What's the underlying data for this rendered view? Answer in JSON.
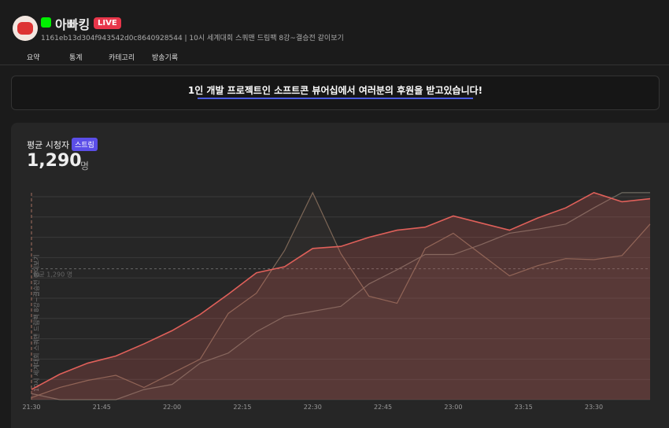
{
  "header": {
    "name": "아빠킹",
    "badge": "LIVE",
    "subtitle": "1161eb13d304f943542d0c8640928544 | 10시 세계대회 스쿼맨 드림팩 8강~결승전 같이보기"
  },
  "tabs": [
    "요약",
    "통계",
    "카테고리",
    "방송기록"
  ],
  "banner": {
    "text": "1인 개발 프로젝트인 소프트콘 뷰어십에서 여러분의 후원을 받고있습니다!"
  },
  "chart_data": {
    "type": "line",
    "title": "평균 시청자",
    "badge": "스트림",
    "stat": "1,290",
    "unit": "명",
    "reference": {
      "value": 1290,
      "label": "평균 1,290 명"
    },
    "annotation": "10시 세계대회 스쿼맨 드림팩 8강~결승전 같이보기",
    "x": [
      0,
      6,
      12,
      18,
      24,
      30,
      36,
      42,
      48,
      54,
      60,
      66,
      72,
      78,
      84,
      90,
      96,
      102,
      108,
      114,
      120,
      126,
      132
    ],
    "xlim": [
      0,
      132
    ],
    "xticks": [
      {
        "value": 0,
        "label": "21:30"
      },
      {
        "value": 15,
        "label": "21:45"
      },
      {
        "value": 30,
        "label": "22:00"
      },
      {
        "value": 45,
        "label": "22:15"
      },
      {
        "value": 60,
        "label": "22:30"
      },
      {
        "value": 75,
        "label": "22:45"
      },
      {
        "value": 90,
        "label": "23:00"
      },
      {
        "value": 105,
        "label": "23:15"
      },
      {
        "value": 120,
        "label": "23:30"
      }
    ],
    "ylim": [
      0,
      2000
    ],
    "yticks": [
      0,
      200,
      400,
      600,
      800,
      1000,
      1200,
      1400,
      1600,
      1800,
      2000
    ],
    "grid": true,
    "series": [
      {
        "color": "#e0605a",
        "values": [
          100,
          250,
          360,
          430,
          550,
          680,
          840,
          1040,
          1250,
          1310,
          1490,
          1510,
          1600,
          1670,
          1700,
          1810,
          1740,
          1670,
          1790,
          1890,
          2040,
          1950,
          1980
        ]
      },
      {
        "color": "#7d6757",
        "values": [
          20,
          120,
          190,
          240,
          120,
          260,
          400,
          850,
          1050,
          1470,
          2040,
          1440,
          1020,
          950,
          1490,
          1640,
          1430,
          1220,
          1320,
          1390,
          1380,
          1420,
          1730
        ]
      },
      {
        "color": "#6e6a60",
        "values": [
          60,
          0,
          0,
          0,
          100,
          150,
          360,
          460,
          670,
          820,
          870,
          920,
          1140,
          1280,
          1430,
          1430,
          1530,
          1640,
          1680,
          1730,
          1890,
          2040,
          2040
        ]
      }
    ]
  }
}
